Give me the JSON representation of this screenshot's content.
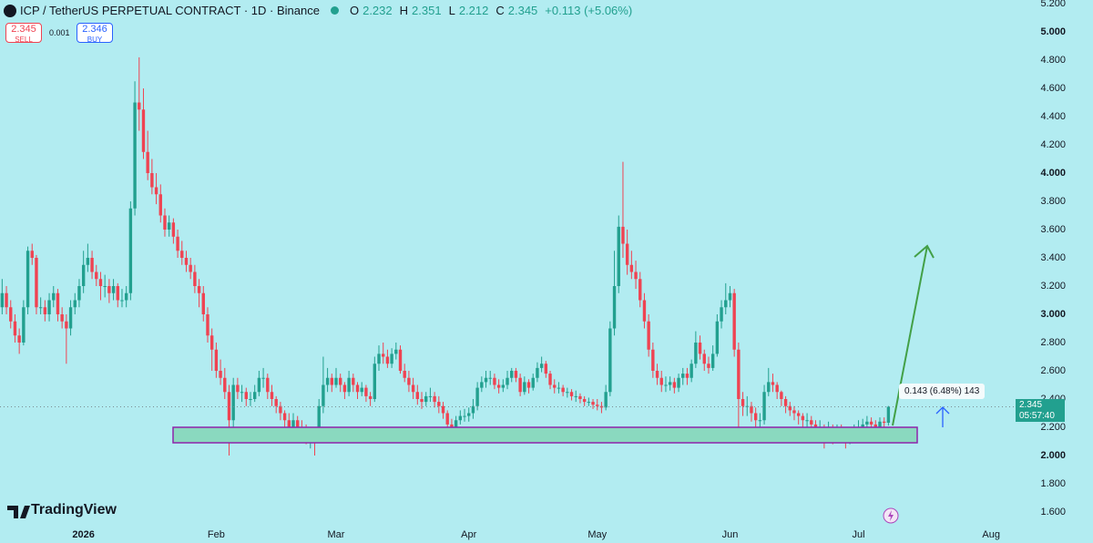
{
  "header": {
    "symbol": "ICP / TetherUS PERPETUAL CONTRACT · 1D · Binance",
    "open_label": "O",
    "open": "2.232",
    "high_label": "H",
    "high": "2.351",
    "low_label": "L",
    "low": "2.212",
    "close_label": "C",
    "close": "2.345",
    "change": "+0.113 (+5.06%)"
  },
  "trade": {
    "sell_price": "2.345",
    "sell_label": "SELL",
    "spread": "0.001",
    "buy_price": "2.346",
    "buy_label": "BUY"
  },
  "price_tag": {
    "price": "2.345",
    "countdown": "05:57:40"
  },
  "measure": "0.143 (6.48%) 143",
  "logo": "TradingView",
  "chart_data": {
    "type": "candlestick",
    "series": [
      {
        "up_color": "#22a08f",
        "down_color": "#ef4352",
        "open": [
          3.05,
          3.15,
          3.05,
          2.95,
          2.85,
          2.8,
          3.05,
          3.45,
          3.4,
          3.05,
          3.05,
          3.0,
          3.1,
          3.15,
          3.0,
          2.95,
          2.9,
          3.05,
          3.1,
          3.2,
          3.35,
          3.4,
          3.3,
          3.25,
          3.2,
          3.2,
          3.15,
          3.2,
          3.1,
          3.1,
          3.15,
          3.75,
          4.5,
          4.45,
          4.15,
          4.0,
          3.9,
          3.85,
          3.7,
          3.6,
          3.65,
          3.55,
          3.45,
          3.4,
          3.35,
          3.3,
          3.2,
          3.15,
          3.0,
          2.85,
          2.75,
          2.6,
          2.55,
          2.45,
          2.25,
          2.5,
          2.45,
          2.45,
          2.4,
          2.4,
          2.45,
          2.55,
          2.55,
          2.45,
          2.4,
          2.35,
          2.3,
          2.25,
          2.2,
          2.25,
          2.2,
          2.18,
          2.15,
          2.15,
          2.12,
          2.35,
          2.5,
          2.55,
          2.5,
          2.55,
          2.5,
          2.45,
          2.55,
          2.5,
          2.45,
          2.48,
          2.42,
          2.4,
          2.65,
          2.72,
          2.7,
          2.65,
          2.72,
          2.75,
          2.6,
          2.55,
          2.5,
          2.45,
          2.4,
          2.38,
          2.42,
          2.42,
          2.38,
          2.35,
          2.3,
          2.22,
          2.2,
          2.25,
          2.28,
          2.28,
          2.3,
          2.35,
          2.48,
          2.52,
          2.55,
          2.55,
          2.5,
          2.48,
          2.5,
          2.55,
          2.6,
          2.55,
          2.45,
          2.52,
          2.48,
          2.55,
          2.62,
          2.65,
          2.58,
          2.5,
          2.48,
          2.48,
          2.45,
          2.45,
          2.42,
          2.42,
          2.4,
          2.38,
          2.38,
          2.36,
          2.35,
          2.34,
          2.45,
          2.9,
          3.2,
          3.62,
          3.5,
          3.35,
          3.3,
          3.25,
          3.1,
          2.95,
          2.75,
          2.6,
          2.55,
          2.5,
          2.5,
          2.52,
          2.48,
          2.55,
          2.58,
          2.55,
          2.65,
          2.8,
          2.72,
          2.65,
          2.62,
          2.72,
          2.95,
          3.05,
          3.1,
          3.15,
          2.75,
          2.4,
          2.35,
          2.35,
          2.3,
          2.25,
          2.25,
          2.45,
          2.52,
          2.5,
          2.45,
          2.4,
          2.35,
          2.32,
          2.3,
          2.28,
          2.25,
          2.25,
          2.22,
          2.2,
          2.2,
          2.18,
          2.18,
          2.15,
          2.18,
          2.15,
          2.12,
          2.15,
          2.18,
          2.2,
          2.22,
          2.24,
          2.22,
          2.2,
          2.24,
          2.232
        ],
        "high": [
          3.25,
          3.2,
          3.1,
          3.0,
          2.9,
          3.1,
          3.48,
          3.5,
          3.42,
          3.12,
          3.1,
          3.15,
          3.2,
          3.18,
          3.05,
          3.0,
          3.1,
          3.15,
          3.25,
          3.45,
          3.5,
          3.45,
          3.35,
          3.3,
          3.28,
          3.25,
          3.25,
          3.22,
          3.18,
          3.2,
          3.8,
          4.65,
          4.82,
          4.6,
          4.3,
          4.1,
          4.0,
          3.92,
          3.75,
          3.7,
          3.68,
          3.6,
          3.52,
          3.45,
          3.4,
          3.35,
          3.25,
          3.2,
          3.05,
          2.9,
          2.8,
          2.68,
          2.62,
          2.5,
          2.55,
          2.55,
          2.5,
          2.48,
          2.45,
          2.5,
          2.6,
          2.62,
          2.58,
          2.5,
          2.42,
          2.38,
          2.32,
          2.3,
          2.3,
          2.28,
          2.25,
          2.22,
          2.2,
          2.2,
          2.4,
          2.7,
          2.62,
          2.58,
          2.62,
          2.58,
          2.52,
          2.6,
          2.58,
          2.52,
          2.52,
          2.5,
          2.45,
          2.7,
          2.78,
          2.8,
          2.75,
          2.76,
          2.8,
          2.78,
          2.65,
          2.6,
          2.55,
          2.5,
          2.45,
          2.45,
          2.48,
          2.45,
          2.42,
          2.38,
          2.32,
          2.26,
          2.28,
          2.32,
          2.33,
          2.34,
          2.4,
          2.52,
          2.56,
          2.6,
          2.6,
          2.58,
          2.54,
          2.54,
          2.6,
          2.62,
          2.62,
          2.58,
          2.56,
          2.54,
          2.58,
          2.66,
          2.7,
          2.67,
          2.6,
          2.54,
          2.52,
          2.5,
          2.48,
          2.47,
          2.46,
          2.44,
          2.42,
          2.41,
          2.4,
          2.4,
          2.38,
          2.5,
          2.95,
          3.45,
          3.7,
          4.08,
          3.6,
          3.45,
          3.38,
          3.3,
          3.15,
          3.0,
          2.8,
          2.65,
          2.6,
          2.56,
          2.56,
          2.55,
          2.58,
          2.62,
          2.62,
          2.68,
          2.88,
          2.85,
          2.75,
          2.7,
          2.78,
          3.0,
          3.1,
          3.22,
          3.2,
          3.18,
          2.8,
          2.45,
          2.42,
          2.38,
          2.34,
          2.3,
          2.5,
          2.62,
          2.58,
          2.52,
          2.46,
          2.42,
          2.38,
          2.35,
          2.32,
          2.3,
          2.3,
          2.28,
          2.25,
          2.25,
          2.22,
          2.24,
          2.22,
          2.22,
          2.22,
          2.18,
          2.18,
          2.22,
          2.25,
          2.26,
          2.28,
          2.27,
          2.25,
          2.27,
          2.27,
          2.351
        ],
        "low": [
          3.0,
          3.0,
          2.9,
          2.8,
          2.72,
          2.78,
          3.0,
          3.35,
          3.0,
          3.0,
          2.95,
          2.95,
          3.05,
          2.95,
          2.9,
          2.65,
          2.85,
          3.0,
          3.05,
          3.15,
          3.3,
          3.25,
          3.2,
          3.1,
          3.12,
          3.08,
          3.1,
          3.05,
          3.05,
          3.05,
          3.1,
          3.7,
          4.3,
          4.1,
          3.95,
          3.85,
          3.78,
          3.65,
          3.55,
          3.55,
          3.5,
          3.4,
          3.35,
          3.3,
          3.25,
          3.15,
          3.05,
          2.95,
          2.8,
          2.6,
          2.55,
          2.5,
          2.4,
          2.0,
          2.2,
          2.4,
          2.38,
          2.35,
          2.35,
          2.38,
          2.42,
          2.48,
          2.4,
          2.35,
          2.3,
          2.25,
          2.18,
          2.15,
          2.15,
          2.15,
          2.12,
          2.08,
          2.05,
          2.0,
          2.1,
          2.3,
          2.45,
          2.45,
          2.48,
          2.45,
          2.4,
          2.42,
          2.45,
          2.4,
          2.42,
          2.38,
          2.35,
          2.38,
          2.6,
          2.65,
          2.62,
          2.62,
          2.68,
          2.58,
          2.52,
          2.45,
          2.4,
          2.36,
          2.33,
          2.35,
          2.38,
          2.34,
          2.3,
          2.26,
          2.18,
          2.15,
          2.18,
          2.22,
          2.24,
          2.24,
          2.26,
          2.32,
          2.45,
          2.48,
          2.5,
          2.47,
          2.44,
          2.45,
          2.47,
          2.52,
          2.52,
          2.42,
          2.43,
          2.44,
          2.46,
          2.52,
          2.59,
          2.55,
          2.47,
          2.44,
          2.44,
          2.42,
          2.41,
          2.39,
          2.38,
          2.37,
          2.35,
          2.35,
          2.33,
          2.32,
          2.3,
          2.32,
          2.42,
          2.85,
          3.15,
          3.4,
          3.28,
          3.25,
          3.18,
          3.05,
          2.9,
          2.7,
          2.55,
          2.5,
          2.45,
          2.45,
          2.46,
          2.44,
          2.45,
          2.5,
          2.5,
          2.52,
          2.62,
          2.68,
          2.6,
          2.58,
          2.6,
          2.7,
          2.9,
          3.0,
          3.05,
          2.7,
          2.12,
          2.28,
          2.28,
          2.24,
          2.2,
          2.18,
          2.22,
          2.42,
          2.45,
          2.4,
          2.35,
          2.3,
          2.28,
          2.25,
          2.22,
          2.18,
          2.2,
          2.16,
          2.1,
          2.14,
          2.05,
          2.12,
          2.08,
          2.12,
          2.1,
          2.05,
          2.08,
          2.12,
          2.12,
          2.15,
          2.18,
          2.16,
          2.14,
          2.16,
          2.18,
          2.212
        ],
        "close": [
          3.15,
          3.05,
          2.95,
          2.85,
          2.8,
          3.05,
          3.45,
          3.4,
          3.05,
          3.05,
          3.0,
          3.1,
          3.15,
          3.0,
          2.95,
          2.9,
          3.05,
          3.1,
          3.2,
          3.35,
          3.4,
          3.3,
          3.25,
          3.2,
          3.2,
          3.15,
          3.2,
          3.1,
          3.1,
          3.15,
          3.75,
          4.5,
          4.45,
          4.15,
          4.0,
          3.9,
          3.85,
          3.7,
          3.6,
          3.65,
          3.55,
          3.45,
          3.4,
          3.35,
          3.3,
          3.2,
          3.15,
          3.0,
          2.85,
          2.75,
          2.6,
          2.55,
          2.45,
          2.25,
          2.5,
          2.45,
          2.45,
          2.4,
          2.4,
          2.45,
          2.55,
          2.55,
          2.45,
          2.4,
          2.35,
          2.3,
          2.25,
          2.2,
          2.25,
          2.2,
          2.18,
          2.15,
          2.15,
          2.12,
          2.35,
          2.5,
          2.55,
          2.5,
          2.55,
          2.5,
          2.45,
          2.55,
          2.5,
          2.45,
          2.48,
          2.42,
          2.4,
          2.65,
          2.72,
          2.7,
          2.65,
          2.72,
          2.75,
          2.6,
          2.55,
          2.5,
          2.45,
          2.4,
          2.38,
          2.42,
          2.42,
          2.38,
          2.35,
          2.3,
          2.22,
          2.2,
          2.25,
          2.28,
          2.28,
          2.3,
          2.35,
          2.48,
          2.52,
          2.55,
          2.55,
          2.5,
          2.48,
          2.5,
          2.55,
          2.6,
          2.55,
          2.45,
          2.52,
          2.48,
          2.55,
          2.62,
          2.65,
          2.58,
          2.5,
          2.48,
          2.48,
          2.45,
          2.45,
          2.42,
          2.42,
          2.4,
          2.38,
          2.38,
          2.36,
          2.35,
          2.34,
          2.45,
          2.9,
          3.2,
          3.62,
          3.5,
          3.35,
          3.3,
          3.25,
          3.1,
          2.95,
          2.75,
          2.6,
          2.55,
          2.5,
          2.5,
          2.52,
          2.48,
          2.55,
          2.58,
          2.55,
          2.65,
          2.8,
          2.72,
          2.65,
          2.62,
          2.72,
          2.95,
          3.05,
          3.1,
          3.15,
          2.75,
          2.4,
          2.35,
          2.35,
          2.3,
          2.25,
          2.25,
          2.45,
          2.52,
          2.5,
          2.45,
          2.4,
          2.35,
          2.32,
          2.3,
          2.28,
          2.25,
          2.25,
          2.22,
          2.2,
          2.2,
          2.18,
          2.18,
          2.15,
          2.18,
          2.15,
          2.12,
          2.15,
          2.18,
          2.2,
          2.22,
          2.24,
          2.22,
          2.2,
          2.24,
          2.232,
          2.345
        ]
      }
    ],
    "xlim": [
      -0.5,
      236.7
    ],
    "xticks": [
      {
        "value": 19,
        "label": "2026"
      },
      {
        "value": 50,
        "label": "Feb"
      },
      {
        "value": 78,
        "label": "Mar"
      },
      {
        "value": 109,
        "label": "Apr"
      },
      {
        "value": 139,
        "label": "May"
      },
      {
        "value": 170,
        "label": "Jun"
      },
      {
        "value": 200,
        "label": "Jul"
      },
      {
        "value": 231,
        "label": "Aug"
      }
    ],
    "ylim": [
      1.516,
      5.226
    ],
    "yticks": [
      {
        "value": 5.2,
        "label": "5.200"
      },
      {
        "value": 5,
        "label": "5.000"
      },
      {
        "value": 4.8,
        "label": "4.800"
      },
      {
        "value": 4.6,
        "label": "4.600"
      },
      {
        "value": 4.4,
        "label": "4.400"
      },
      {
        "value": 4.2,
        "label": "4.200"
      },
      {
        "value": 4,
        "label": "4.000"
      },
      {
        "value": 3.8,
        "label": "3.800"
      },
      {
        "value": 3.6,
        "label": "3.600"
      },
      {
        "value": 3.4,
        "label": "3.400"
      },
      {
        "value": 3.2,
        "label": "3.200"
      },
      {
        "value": 3,
        "label": "3.000"
      },
      {
        "value": 2.8,
        "label": "2.800"
      },
      {
        "value": 2.6,
        "label": "2.600"
      },
      {
        "value": 2.4,
        "label": "2.400"
      },
      {
        "value": 2.2,
        "label": "2.200"
      },
      {
        "value": 2,
        "label": "2.000"
      },
      {
        "value": 1.8,
        "label": "1.800"
      },
      {
        "value": 1.6,
        "label": "1.600"
      }
    ]
  }
}
